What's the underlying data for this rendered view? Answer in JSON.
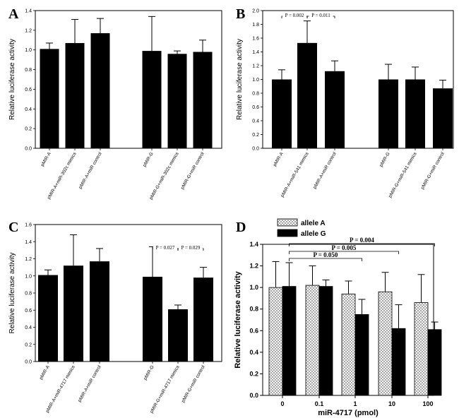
{
  "chart_data": [
    {
      "panel": "A",
      "type": "bar",
      "ylabel": "Relative luciferase activity",
      "ylim": [
        0,
        1.4
      ],
      "yticks": [
        "0.0",
        "0.2",
        "0.4",
        "0.6",
        "0.8",
        "1.0",
        "1.2",
        "1.4"
      ],
      "categories": [
        "pMIR-A",
        "pMIR-A+miR-302c mimics",
        "pMIR-A+miR control",
        "pMIR-G",
        "pMIR-G+miR-302c mimics",
        "pMIR-G+miR control"
      ],
      "values": [
        1.01,
        1.07,
        1.17,
        0.99,
        0.96,
        0.98
      ],
      "errors": [
        0.06,
        0.24,
        0.15,
        0.35,
        0.03,
        0.12
      ],
      "annotations": []
    },
    {
      "panel": "B",
      "type": "bar",
      "ylabel": "Relative luciferase activity",
      "ylim": [
        0,
        2.0
      ],
      "yticks": [
        "0.0",
        "0.2",
        "0.4",
        "0.6",
        "0.8",
        "1.0",
        "1.2",
        "1.4",
        "1.6",
        "1.8",
        "2.0"
      ],
      "categories": [
        "pMIR-A",
        "pMIR-A+miR-541 mimics",
        "pMIR-A+miR control",
        "pMIR-G",
        "pMIR-G+miR-541 mimics",
        "pMIR-G+miR control"
      ],
      "values": [
        1.0,
        1.53,
        1.12,
        1.0,
        1.0,
        0.87
      ],
      "errors": [
        0.14,
        0.32,
        0.15,
        0.22,
        0.18,
        0.12
      ],
      "annotations": [
        {
          "text": "P = 0.002",
          "from": 0,
          "to": 1
        },
        {
          "text": "P = 0.011",
          "from": 1,
          "to": 2
        }
      ]
    },
    {
      "panel": "C",
      "type": "bar",
      "ylabel": "Relative luciferase activity",
      "ylim": [
        0,
        1.6
      ],
      "yticks": [
        "0.0",
        "0.2",
        "0.4",
        "0.6",
        "0.8",
        "1.0",
        "1.2",
        "1.4",
        "1.6"
      ],
      "categories": [
        "pMIR-A",
        "pMIR-A+miR-4717 mimics",
        "pMIR-A+miR control",
        "pMIR-G",
        "pMIR-G+miR-4717 mimics",
        "pMIR-G+miR control"
      ],
      "values": [
        1.01,
        1.12,
        1.17,
        0.99,
        0.61,
        0.98
      ],
      "errors": [
        0.06,
        0.36,
        0.15,
        0.35,
        0.05,
        0.12
      ],
      "annotations": [
        {
          "text": "P = 0.027",
          "from": 3,
          "to": 4
        },
        {
          "text": "P = 0.029",
          "from": 4,
          "to": 5
        }
      ]
    },
    {
      "panel": "D",
      "type": "bar",
      "xlabel": "miR-4717 (pmol)",
      "ylabel": "Relative luciferase activity",
      "ylim": [
        0,
        1.4
      ],
      "yticks": [
        "0.0",
        "0.2",
        "0.4",
        "0.6",
        "0.8",
        "1.0",
        "1.2",
        "1.4"
      ],
      "categories": [
        "0",
        "0.1",
        "1",
        "10",
        "100"
      ],
      "series": [
        {
          "name": "allele A",
          "values": [
            1.0,
            1.02,
            0.94,
            0.96,
            0.86
          ],
          "errors": [
            0.24,
            0.18,
            0.12,
            0.18,
            0.26
          ]
        },
        {
          "name": "allele G",
          "values": [
            1.01,
            1.01,
            0.75,
            0.62,
            0.61
          ],
          "errors": [
            0.22,
            0.06,
            0.14,
            0.22,
            0.07
          ]
        }
      ],
      "annotations": [
        {
          "text": "P = 0.050",
          "to": 2
        },
        {
          "text": "P = 0.005",
          "to": 3
        },
        {
          "text": "P = 0.004",
          "to": 4
        }
      ],
      "legend_position": "top-left"
    }
  ]
}
